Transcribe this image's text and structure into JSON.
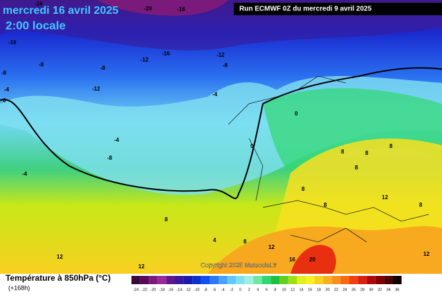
{
  "header": {
    "date": "mercredi 16 avril 2025",
    "time": "2:00 locale",
    "run": "Run ECMWF 0Z du mercredi 9 avril 2025"
  },
  "footer": {
    "title": "Température à 850hPa (°C)",
    "lead": "(+168h)",
    "copyright": "Copyright 2025 Meteociel.fr"
  },
  "legend": {
    "labels": [
      "-24",
      "-22",
      "-20",
      "-18",
      "-16",
      "-14",
      "-12",
      "-10",
      "-8",
      "-6",
      "-4",
      "-2",
      "0",
      "2",
      "4",
      "6",
      "8",
      "10",
      "12",
      "14",
      "16",
      "18",
      "20",
      "22",
      "24",
      "26",
      "28",
      "30",
      "32",
      "34",
      "36"
    ],
    "colors": [
      "#3b0a3b",
      "#5a0a5a",
      "#7a1a7a",
      "#9a2a9a",
      "#5a1a8a",
      "#3a1a9a",
      "#1a1ab0",
      "#0a30d0",
      "#1050f0",
      "#2a7af8",
      "#4aa0fa",
      "#60c8fa",
      "#80e0f0",
      "#a0f0e0",
      "#70e8a0",
      "#30d870",
      "#20c040",
      "#60d020",
      "#a0e010",
      "#e0f020",
      "#f8f020",
      "#f8d020",
      "#f8b020",
      "#f89020",
      "#f86a10",
      "#f04010",
      "#d82010",
      "#b00808",
      "#800000",
      "#500000",
      "#100000"
    ]
  },
  "map_labels": [
    "-16",
    "-20",
    "-16",
    "-16",
    "-8",
    "-8",
    "-12",
    "-16",
    "-12",
    "-8",
    "-8",
    "-4",
    "-12",
    "-4",
    "0",
    "0",
    "-4",
    "-8",
    "0",
    "-4",
    "8",
    "8",
    "8",
    "8",
    "8",
    "8",
    "12",
    "8",
    "8",
    "4",
    "8",
    "12",
    "16",
    "20",
    "12",
    "12",
    "12"
  ]
}
